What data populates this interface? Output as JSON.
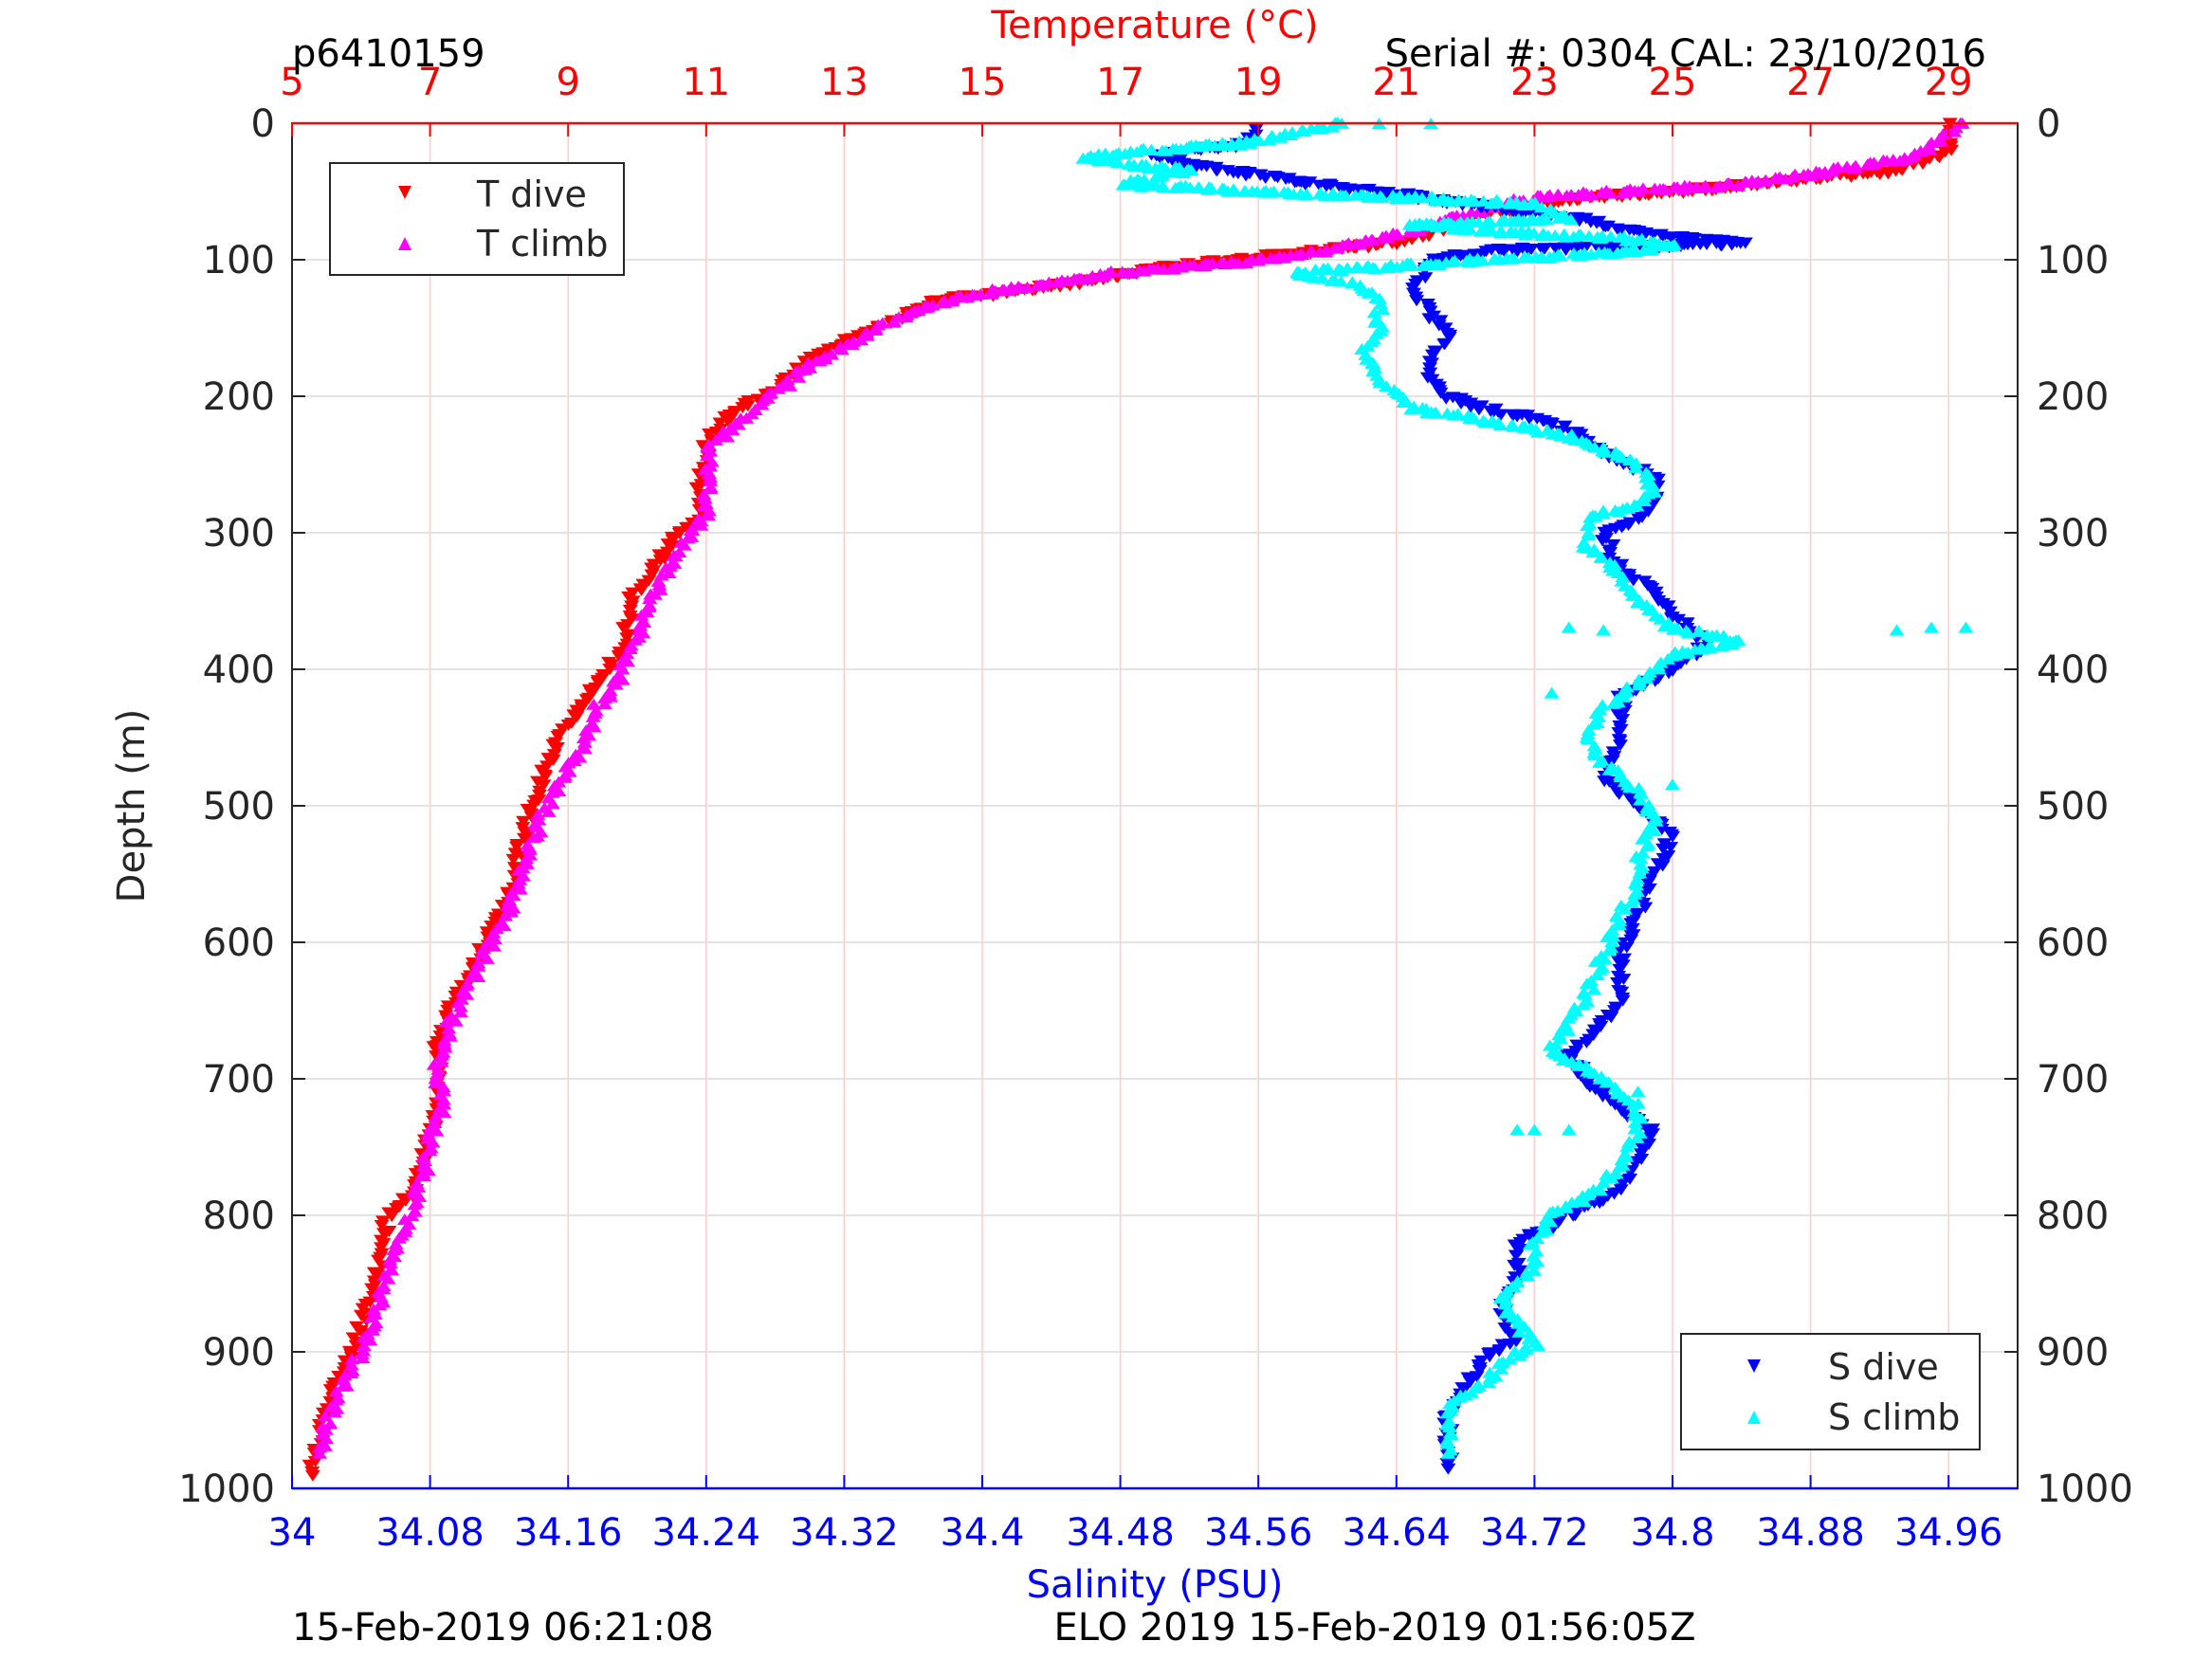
{
  "header": {
    "profile_id": "p6410159",
    "serial": "Serial #: 0304  CAL: 23/10/2016"
  },
  "footer": {
    "left": "15-Feb-2019 06:21:08",
    "center": "ELO 2019 15-Feb-2019 01:56:05Z"
  },
  "colors": {
    "t_dive": "#ff0000",
    "t_climb": "#ff00ff",
    "s_dive": "#0000ff",
    "s_climb": "#00ffff",
    "temp_axis": "#ff0000",
    "sal_axis": "#0000ff",
    "depth_axis": "#262626"
  },
  "chart_data": {
    "type": "scatter",
    "title": "",
    "ylabel": "Depth (m)",
    "ylim": [
      0,
      1000
    ],
    "y_reversed": true,
    "y_ticks": [
      "0",
      "100",
      "200",
      "300",
      "400",
      "500",
      "600",
      "700",
      "800",
      "900",
      "1000"
    ],
    "temp_axis": {
      "label": "Temperature (°C)",
      "lim": [
        5,
        30
      ],
      "ticks": [
        "5",
        "7",
        "9",
        "11",
        "13",
        "15",
        "17",
        "19",
        "21",
        "23",
        "25",
        "27",
        "29"
      ],
      "position": "top"
    },
    "sal_axis": {
      "label": "Salinity (PSU)",
      "lim": [
        34.0,
        35.0
      ],
      "ticks": [
        "34",
        "34.08",
        "34.16",
        "34.24",
        "34.32",
        "34.4",
        "34.48",
        "34.56",
        "34.64",
        "34.72",
        "34.8",
        "34.88",
        "34.96"
      ],
      "position": "bottom"
    },
    "grid": true,
    "legends": [
      {
        "position": "top-left",
        "entries": [
          "T dive",
          "T climb"
        ]
      },
      {
        "position": "bottom-right",
        "entries": [
          "S dive",
          "S climb"
        ]
      }
    ],
    "series": [
      {
        "name": "T dive",
        "axis": "temperature",
        "marker": "triangle-down",
        "points": [
          [
            29.0,
            0
          ],
          [
            29.0,
            20
          ],
          [
            28.2,
            35
          ],
          [
            27.0,
            40
          ],
          [
            26.0,
            45
          ],
          [
            25.0,
            50
          ],
          [
            23.5,
            55
          ],
          [
            22.8,
            62
          ],
          [
            22.0,
            70
          ],
          [
            21.5,
            80
          ],
          [
            20.9,
            88
          ],
          [
            20.0,
            92
          ],
          [
            19.0,
            98
          ],
          [
            18.0,
            103
          ],
          [
            17.3,
            108
          ],
          [
            16.6,
            115
          ],
          [
            15.5,
            122
          ],
          [
            14.3,
            130
          ],
          [
            13.8,
            142
          ],
          [
            13.5,
            150
          ],
          [
            13.0,
            160
          ],
          [
            12.5,
            172
          ],
          [
            12.2,
            185
          ],
          [
            12.0,
            195
          ],
          [
            11.6,
            205
          ],
          [
            11.3,
            215
          ],
          [
            11.0,
            235
          ],
          [
            10.9,
            260
          ],
          [
            10.9,
            290
          ],
          [
            10.6,
            300
          ],
          [
            10.3,
            320
          ],
          [
            9.9,
            350
          ],
          [
            9.8,
            380
          ],
          [
            9.6,
            400
          ],
          [
            9.3,
            420
          ],
          [
            9.0,
            440
          ],
          [
            8.7,
            470
          ],
          [
            8.5,
            500
          ],
          [
            8.3,
            530
          ],
          [
            8.2,
            560
          ],
          [
            7.9,
            590
          ],
          [
            7.6,
            620
          ],
          [
            7.3,
            650
          ],
          [
            7.1,
            680
          ],
          [
            7.1,
            710
          ],
          [
            7.0,
            740
          ],
          [
            6.9,
            760
          ],
          [
            6.8,
            780
          ],
          [
            6.4,
            800
          ],
          [
            6.3,
            820
          ],
          [
            6.2,
            850
          ],
          [
            6.0,
            880
          ],
          [
            5.8,
            910
          ],
          [
            5.5,
            940
          ],
          [
            5.4,
            960
          ],
          [
            5.3,
            980
          ],
          [
            5.3,
            990
          ]
        ]
      },
      {
        "name": "T climb",
        "axis": "temperature",
        "marker": "triangle-up",
        "points": [
          [
            29.2,
            0
          ],
          [
            28.5,
            25
          ],
          [
            27.0,
            38
          ],
          [
            26.0,
            45
          ],
          [
            24.5,
            50
          ],
          [
            23.0,
            55
          ],
          [
            22.5,
            60
          ],
          [
            21.8,
            70
          ],
          [
            21.2,
            80
          ],
          [
            20.5,
            88
          ],
          [
            19.8,
            95
          ],
          [
            18.8,
            102
          ],
          [
            18.0,
            105
          ],
          [
            17.0,
            110
          ],
          [
            16.0,
            118
          ],
          [
            15.0,
            125
          ],
          [
            14.2,
            135
          ],
          [
            13.6,
            148
          ],
          [
            13.2,
            158
          ],
          [
            12.8,
            170
          ],
          [
            12.4,
            180
          ],
          [
            12.2,
            190
          ],
          [
            11.8,
            205
          ],
          [
            11.5,
            220
          ],
          [
            11.1,
            235
          ],
          [
            11.0,
            260
          ],
          [
            11.0,
            285
          ],
          [
            10.8,
            300
          ],
          [
            10.4,
            330
          ],
          [
            10.2,
            350
          ],
          [
            10.0,
            380
          ],
          [
            9.7,
            410
          ],
          [
            9.4,
            430
          ],
          [
            9.2,
            460
          ],
          [
            8.9,
            480
          ],
          [
            8.6,
            510
          ],
          [
            8.4,
            540
          ],
          [
            8.2,
            570
          ],
          [
            7.9,
            600
          ],
          [
            7.6,
            630
          ],
          [
            7.3,
            660
          ],
          [
            7.1,
            690
          ],
          [
            7.2,
            720
          ],
          [
            7.0,
            745
          ],
          [
            6.9,
            770
          ],
          [
            6.7,
            800
          ],
          [
            6.5,
            830
          ],
          [
            6.3,
            860
          ],
          [
            6.1,
            890
          ],
          [
            5.9,
            910
          ],
          [
            5.7,
            930
          ],
          [
            5.5,
            955
          ],
          [
            5.4,
            975
          ]
        ]
      },
      {
        "name": "S dive",
        "axis": "salinity",
        "marker": "triangle-down",
        "points": [
          [
            34.56,
            5
          ],
          [
            34.55,
            15
          ],
          [
            34.5,
            22
          ],
          [
            34.52,
            30
          ],
          [
            34.56,
            38
          ],
          [
            34.6,
            45
          ],
          [
            34.66,
            55
          ],
          [
            34.7,
            62
          ],
          [
            34.75,
            70
          ],
          [
            34.78,
            80
          ],
          [
            34.82,
            85
          ],
          [
            34.84,
            88
          ],
          [
            34.7,
            92
          ],
          [
            34.66,
            100
          ],
          [
            34.65,
            120
          ],
          [
            34.66,
            140
          ],
          [
            34.67,
            155
          ],
          [
            34.66,
            170
          ],
          [
            34.66,
            185
          ],
          [
            34.67,
            200
          ],
          [
            34.7,
            212
          ],
          [
            34.72,
            215
          ],
          [
            34.74,
            225
          ],
          [
            34.76,
            240
          ],
          [
            34.79,
            260
          ],
          [
            34.79,
            275
          ],
          [
            34.78,
            290
          ],
          [
            34.76,
            300
          ],
          [
            34.77,
            330
          ],
          [
            34.79,
            340
          ],
          [
            34.8,
            360
          ],
          [
            34.82,
            380
          ],
          [
            34.8,
            400
          ],
          [
            34.77,
            420
          ],
          [
            34.77,
            450
          ],
          [
            34.76,
            480
          ],
          [
            34.78,
            500
          ],
          [
            34.8,
            520
          ],
          [
            34.79,
            550
          ],
          [
            34.78,
            580
          ],
          [
            34.77,
            610
          ],
          [
            34.77,
            640
          ],
          [
            34.76,
            660
          ],
          [
            34.74,
            680
          ],
          [
            34.75,
            700
          ],
          [
            34.77,
            720
          ],
          [
            34.79,
            740
          ],
          [
            34.78,
            760
          ],
          [
            34.77,
            780
          ],
          [
            34.74,
            800
          ],
          [
            34.71,
            820
          ],
          [
            34.71,
            850
          ],
          [
            34.7,
            870
          ],
          [
            34.71,
            890
          ],
          [
            34.69,
            905
          ],
          [
            34.68,
            925
          ],
          [
            34.67,
            945
          ],
          [
            34.67,
            965
          ],
          [
            34.67,
            985
          ]
        ]
      },
      {
        "name": "S climb",
        "axis": "salinity",
        "marker": "triangle-up",
        "points": [
          [
            34.61,
            0
          ],
          [
            34.58,
            8
          ],
          [
            34.55,
            15
          ],
          [
            34.5,
            20
          ],
          [
            34.46,
            25
          ],
          [
            34.48,
            30
          ],
          [
            34.52,
            35
          ],
          [
            34.48,
            45
          ],
          [
            34.55,
            50
          ],
          [
            34.65,
            55
          ],
          [
            34.72,
            60
          ],
          [
            34.74,
            70
          ],
          [
            34.65,
            75
          ],
          [
            34.7,
            80
          ],
          [
            34.77,
            85
          ],
          [
            34.8,
            90
          ],
          [
            34.77,
            95
          ],
          [
            34.7,
            100
          ],
          [
            34.58,
            110
          ],
          [
            34.62,
            120
          ],
          [
            34.63,
            130
          ],
          [
            34.63,
            150
          ],
          [
            34.62,
            170
          ],
          [
            34.63,
            185
          ],
          [
            34.64,
            200
          ],
          [
            34.65,
            210
          ],
          [
            34.7,
            220
          ],
          [
            34.74,
            230
          ],
          [
            34.76,
            240
          ],
          [
            34.78,
            250
          ],
          [
            34.79,
            270
          ],
          [
            34.78,
            280
          ],
          [
            34.75,
            290
          ],
          [
            34.75,
            310
          ],
          [
            34.77,
            330
          ],
          [
            34.78,
            350
          ],
          [
            34.8,
            370
          ],
          [
            34.84,
            380
          ],
          [
            34.8,
            390
          ],
          [
            34.78,
            410
          ],
          [
            34.76,
            430
          ],
          [
            34.75,
            450
          ],
          [
            34.76,
            470
          ],
          [
            34.78,
            490
          ],
          [
            34.79,
            510
          ],
          [
            34.78,
            540
          ],
          [
            34.78,
            560
          ],
          [
            34.77,
            580
          ],
          [
            34.76,
            610
          ],
          [
            34.75,
            640
          ],
          [
            34.74,
            660
          ],
          [
            34.73,
            680
          ],
          [
            34.76,
            700
          ],
          [
            34.78,
            720
          ],
          [
            34.78,
            740
          ],
          [
            34.77,
            760
          ],
          [
            34.76,
            780
          ],
          [
            34.73,
            800
          ],
          [
            34.72,
            820
          ],
          [
            34.72,
            840
          ],
          [
            34.7,
            860
          ],
          [
            34.71,
            880
          ],
          [
            34.72,
            895
          ],
          [
            34.7,
            910
          ],
          [
            34.69,
            925
          ],
          [
            34.67,
            940
          ],
          [
            34.67,
            960
          ],
          [
            34.67,
            975
          ]
        ]
      },
      {
        "name": "S climb",
        "axis": "salinity",
        "marker": "triangle-up",
        "outliers": true,
        "points": [
          [
            34.63,
            1
          ],
          [
            34.66,
            1
          ],
          [
            34.93,
            372
          ],
          [
            34.95,
            370
          ],
          [
            34.97,
            370
          ],
          [
            34.74,
            370
          ],
          [
            34.76,
            372
          ],
          [
            34.73,
            418
          ],
          [
            34.71,
            738
          ],
          [
            34.72,
            738
          ],
          [
            34.74,
            738
          ],
          [
            34.78,
            710
          ],
          [
            34.8,
            485
          ]
        ]
      }
    ]
  }
}
